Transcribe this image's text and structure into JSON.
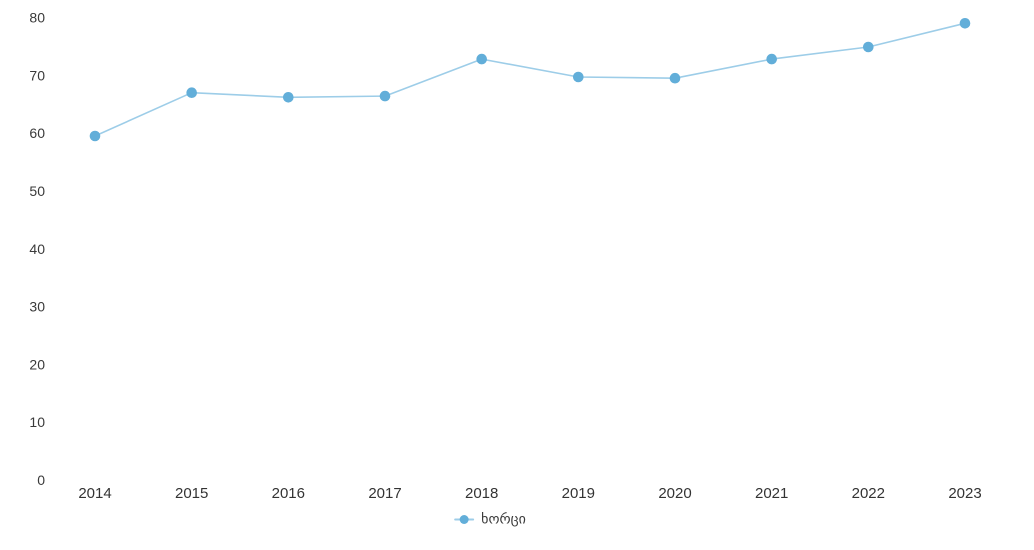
{
  "chart_data": {
    "type": "line",
    "title": "",
    "xlabel": "",
    "ylabel": "",
    "categories": [
      "2014",
      "2015",
      "2016",
      "2017",
      "2018",
      "2019",
      "2020",
      "2021",
      "2022",
      "2023"
    ],
    "series": [
      {
        "name": "ხორცი",
        "values": [
          59.5,
          67.0,
          66.2,
          66.4,
          72.8,
          69.7,
          69.5,
          72.8,
          74.9,
          79.0
        ]
      }
    ],
    "ylim": [
      0,
      80
    ],
    "y_ticks": [
      0,
      10,
      20,
      30,
      40,
      50,
      60,
      70,
      80
    ],
    "grid": false,
    "axis_lines": false,
    "legend_position": "bottom-center",
    "colors": {
      "marker": "#62aed9",
      "line": "#9dcde8",
      "tick_label": "#3a3a3a"
    }
  }
}
